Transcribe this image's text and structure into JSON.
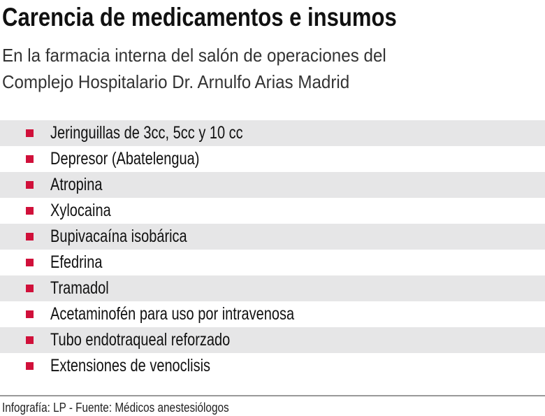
{
  "title": "Carencia de medicamentos e insumos",
  "subtitle_lines": [
    "En la farmacia interna del salón de operaciones del",
    "Complejo Hospitalario Dr. Arnulfo Arias Madrid"
  ],
  "items": [
    "Jeringuillas de 3cc, 5cc y 10 cc",
    "Depresor (Abatelengua)",
    "Atropina",
    "Xylocaina",
    "Bupivacaína isobárica",
    "Efedrina",
    "Tramadol",
    "Acetaminofén para uso por intravenosa",
    "Tubo endotraqueal reforzado",
    "Extensiones de venoclisis"
  ],
  "footer": "Infografía: LP - Fuente: Médicos anestesiólogos",
  "colors": {
    "bullet": "#d0103a",
    "stripe": "#e6e6e7"
  },
  "icons": {
    "bullet": "red-square-bullet-icon"
  }
}
